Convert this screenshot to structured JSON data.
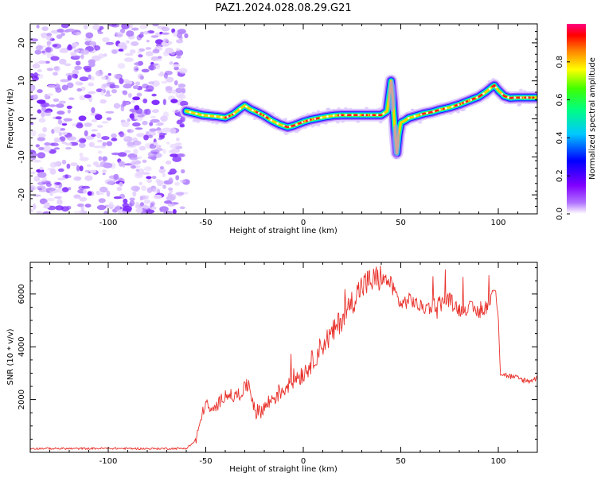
{
  "title": "PAZ1.2024.028.08.29.G21",
  "chart_data": [
    {
      "type": "heatmap",
      "xlabel": "Height of straight line (km)",
      "ylabel": "Frequency (Hz)",
      "xlim": [
        -140,
        120
      ],
      "ylim": [
        -25,
        25
      ],
      "xticks": [
        -100,
        -50,
        0,
        50,
        100
      ],
      "yticks": [
        -20,
        -10,
        0,
        10,
        20
      ],
      "noise_region": [
        -140,
        -60
      ],
      "ridge": {
        "x": [
          -60,
          -56,
          -52,
          -48,
          -44,
          -40,
          -36,
          -32,
          -30,
          -27,
          -24,
          -20,
          -16,
          -12,
          -8,
          -5,
          -2,
          0,
          4,
          8,
          12,
          16,
          20,
          30,
          40,
          43,
          44,
          45,
          46,
          47,
          48,
          49,
          50,
          52,
          54,
          58,
          62,
          66,
          70,
          75,
          80,
          85,
          90,
          94,
          97,
          98,
          100,
          103,
          106,
          110,
          115,
          120
        ],
        "y": [
          2,
          1.5,
          1,
          0.8,
          0.6,
          0.3,
          1.2,
          2.8,
          3.5,
          2.5,
          1.8,
          0.8,
          -0.5,
          -1.5,
          -2.2,
          -1.8,
          -1.2,
          -0.8,
          -0.2,
          0.2,
          0.6,
          0.9,
          1,
          1,
          1,
          2,
          6,
          10,
          5,
          -3,
          -9,
          -4,
          -1,
          -0.5,
          0.2,
          0.8,
          1.4,
          1.8,
          2.4,
          3,
          3.8,
          4.8,
          5.8,
          7.2,
          8.5,
          8.8,
          7.5,
          6,
          5.5,
          5.6,
          5.6,
          5.6
        ]
      },
      "colorbar": {
        "label": "Normalized spectral amplitude",
        "range": [
          0,
          1
        ],
        "ticks": [
          "0.0",
          "0.2",
          "0.4",
          "0.6",
          "0.8"
        ],
        "colors": [
          "#f2e0ff",
          "#8000ff",
          "#0000ff",
          "#00c8ff",
          "#00ff80",
          "#40ff00",
          "#ffff00",
          "#ff8000",
          "#ff0000",
          "#ff0080"
        ]
      }
    },
    {
      "type": "line",
      "xlabel": "Height of straight line (km)",
      "ylabel": "SNR (10 * v/v)",
      "xlim": [
        -140,
        120
      ],
      "ylim": [
        0,
        7200
      ],
      "xticks": [
        -100,
        -50,
        0,
        50,
        100
      ],
      "yticks": [
        2000,
        4000,
        6000
      ],
      "color": "#e8302a",
      "series": [
        {
          "x": [
            -140,
            -120,
            -100,
            -80,
            -60,
            -55,
            -52,
            -50,
            -47,
            -44,
            -40,
            -35,
            -30,
            -28,
            -26,
            -24,
            -20,
            -15,
            -10,
            -5,
            0,
            5,
            10,
            15,
            20,
            25,
            30,
            35,
            40,
            45,
            50,
            55,
            60,
            65,
            70,
            75,
            80,
            85,
            90,
            95,
            98,
            100,
            101,
            105,
            110,
            115,
            120
          ],
          "y": [
            150,
            140,
            150,
            140,
            150,
            450,
            1400,
            1900,
            1500,
            1800,
            2200,
            2100,
            2400,
            2600,
            2000,
            1500,
            1700,
            2100,
            2400,
            2800,
            3000,
            3500,
            4100,
            4500,
            5100,
            5700,
            6300,
            6500,
            6600,
            6400,
            5600,
            5800,
            5500,
            5500,
            5700,
            5800,
            5400,
            5500,
            5300,
            5600,
            6200,
            5300,
            3000,
            2900,
            2800,
            2700,
            2800
          ]
        }
      ]
    }
  ]
}
